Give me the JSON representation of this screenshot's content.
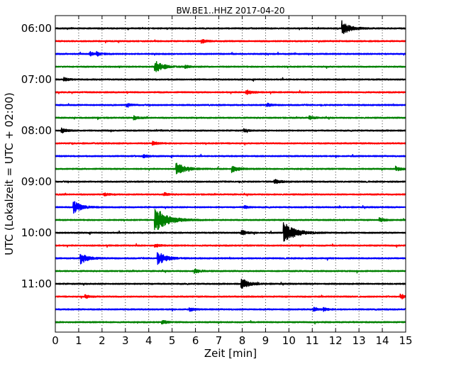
{
  "chart_data": {
    "type": "line",
    "title": "BW.BE1..HHZ 2017-04-20",
    "xlabel": "Zeit  [min]",
    "ylabel": "UTC (Lokalzeit = UTC + 02:00)",
    "xlim": [
      0,
      15
    ],
    "x_ticks": [
      "0",
      "1",
      "2",
      "3",
      "4",
      "5",
      "6",
      "7",
      "8",
      "9",
      "10",
      "11",
      "12",
      "13",
      "14",
      "15"
    ],
    "y_ticks": [
      "06:00",
      "07:00",
      "08:00",
      "09:00",
      "10:00",
      "11:00"
    ],
    "grid": "dotted vertical at each minute",
    "trace_colors": [
      "#000000",
      "#ff0000",
      "#0000ff",
      "#008000"
    ],
    "traces_per_hour": 4,
    "trace_length_minutes": 15,
    "series": [
      {
        "start": "06:00",
        "color": "#000000",
        "events": [
          {
            "t": 12.3,
            "amp": 1.0
          }
        ]
      },
      {
        "start": "06:15",
        "color": "#ff0000",
        "events": [
          {
            "t": 6.3,
            "amp": 0.25
          }
        ]
      },
      {
        "start": "06:30",
        "color": "#0000ff",
        "events": [
          {
            "t": 1.5,
            "amp": 0.3
          },
          {
            "t": 1.8,
            "amp": 0.25
          }
        ]
      },
      {
        "start": "06:45",
        "color": "#008000",
        "events": [
          {
            "t": 4.3,
            "amp": 0.9
          },
          {
            "t": 5.6,
            "amp": 0.15
          }
        ]
      },
      {
        "start": "07:00",
        "color": "#000000",
        "events": [
          {
            "t": 0.4,
            "amp": 0.25
          }
        ]
      },
      {
        "start": "07:15",
        "color": "#ff0000",
        "events": [
          {
            "t": 8.2,
            "amp": 0.35
          }
        ]
      },
      {
        "start": "07:30",
        "color": "#0000ff",
        "events": [
          {
            "t": 3.1,
            "amp": 0.2
          },
          {
            "t": 9.1,
            "amp": 0.2
          }
        ]
      },
      {
        "start": "07:45",
        "color": "#008000",
        "events": [
          {
            "t": 3.4,
            "amp": 0.25
          },
          {
            "t": 10.9,
            "amp": 0.25
          }
        ]
      },
      {
        "start": "08:00",
        "color": "#000000",
        "events": [
          {
            "t": 0.3,
            "amp": 0.35
          },
          {
            "t": 8.1,
            "amp": 0.2
          }
        ]
      },
      {
        "start": "08:15",
        "color": "#ff0000",
        "events": [
          {
            "t": 4.2,
            "amp": 0.25
          }
        ]
      },
      {
        "start": "08:30",
        "color": "#0000ff",
        "events": [
          {
            "t": 3.8,
            "amp": 0.2
          }
        ]
      },
      {
        "start": "08:45",
        "color": "#008000",
        "events": [
          {
            "t": 5.2,
            "amp": 1.0
          },
          {
            "t": 7.6,
            "amp": 0.5
          },
          {
            "t": 14.6,
            "amp": 0.35
          }
        ]
      },
      {
        "start": "09:00",
        "color": "#000000",
        "events": [
          {
            "t": 9.4,
            "amp": 0.35
          }
        ]
      },
      {
        "start": "09:15",
        "color": "#ff0000",
        "events": [
          {
            "t": 2.1,
            "amp": 0.2
          },
          {
            "t": 4.7,
            "amp": 0.2
          }
        ]
      },
      {
        "start": "09:30",
        "color": "#0000ff",
        "events": [
          {
            "t": 0.8,
            "amp": 0.9
          },
          {
            "t": 8.1,
            "amp": 0.2
          }
        ]
      },
      {
        "start": "09:45",
        "color": "#008000",
        "events": [
          {
            "t": 4.3,
            "amp": 1.9
          },
          {
            "t": 13.9,
            "amp": 0.3
          }
        ]
      },
      {
        "start": "10:00",
        "color": "#000000",
        "events": [
          {
            "t": 8.0,
            "amp": 0.35
          },
          {
            "t": 9.8,
            "amp": 1.6
          }
        ]
      },
      {
        "start": "10:15",
        "color": "#ff0000",
        "events": [
          {
            "t": 4.3,
            "amp": 0.2
          }
        ]
      },
      {
        "start": "10:30",
        "color": "#0000ff",
        "events": [
          {
            "t": 1.1,
            "amp": 0.8
          },
          {
            "t": 4.4,
            "amp": 1.0
          }
        ]
      },
      {
        "start": "10:45",
        "color": "#008000",
        "events": [
          {
            "t": 6.0,
            "amp": 0.35
          }
        ]
      },
      {
        "start": "11:00",
        "color": "#000000",
        "events": [
          {
            "t": 8.0,
            "amp": 0.8
          }
        ]
      },
      {
        "start": "11:15",
        "color": "#ff0000",
        "events": [
          {
            "t": 1.3,
            "amp": 0.25
          },
          {
            "t": 14.8,
            "amp": 0.35
          }
        ]
      },
      {
        "start": "11:30",
        "color": "#0000ff",
        "events": [
          {
            "t": 5.8,
            "amp": 0.2
          },
          {
            "t": 11.1,
            "amp": 0.3
          },
          {
            "t": 11.5,
            "amp": 0.2
          }
        ]
      },
      {
        "start": "11:45",
        "color": "#008000",
        "events": [
          {
            "t": 4.6,
            "amp": 0.25
          }
        ]
      }
    ]
  }
}
